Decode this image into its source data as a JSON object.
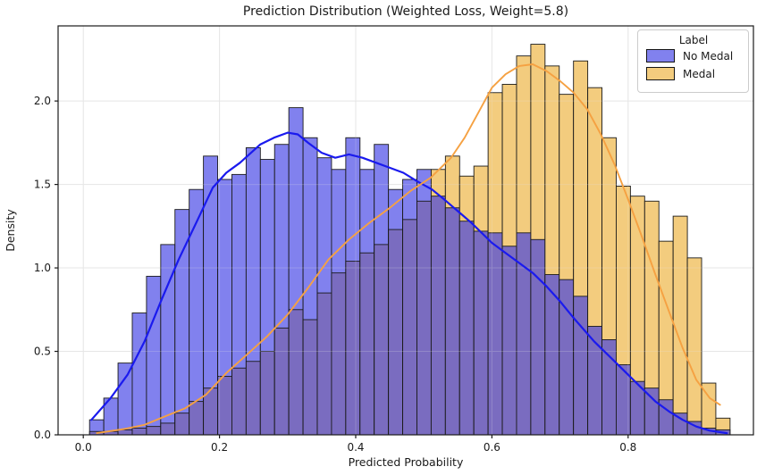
{
  "chart_data": {
    "type": "histogram+kde",
    "title": "Prediction Distribution (Weighted Loss, Weight=5.8)",
    "xlabel": "Predicted Probability",
    "ylabel": "Density",
    "xlim": [
      -0.037,
      0.984
    ],
    "ylim": [
      0,
      2.45
    ],
    "x_tick_values": [
      0.0,
      0.2,
      0.4,
      0.6,
      0.8
    ],
    "x_tick_labels": [
      "0.0",
      "0.2",
      "0.4",
      "0.6",
      "0.8"
    ],
    "y_tick_values": [
      0.0,
      0.5,
      1.0,
      1.5,
      2.0
    ],
    "y_tick_labels": [
      "0.0",
      "0.5",
      "1.0",
      "1.5",
      "2.0"
    ],
    "grid": true,
    "bin_start": 0.0092,
    "bin_width": 0.0209,
    "series": [
      {
        "name": "No Medal",
        "fill_color": "#8181ee",
        "line_color": "#1a1aee",
        "values": [
          0.09,
          0.22,
          0.43,
          0.73,
          0.95,
          1.14,
          1.35,
          1.47,
          1.67,
          1.53,
          1.56,
          1.72,
          1.65,
          1.74,
          1.96,
          1.78,
          1.66,
          1.59,
          1.78,
          1.59,
          1.74,
          1.47,
          1.53,
          1.59,
          1.43,
          1.36,
          1.28,
          1.22,
          1.21,
          1.13,
          1.21,
          1.17,
          0.96,
          0.93,
          0.83,
          0.65,
          0.57,
          0.42,
          0.32,
          0.28,
          0.21,
          0.13,
          0.08,
          0.04,
          0.03
        ],
        "kde": [
          [
            0.012,
            0.09
          ],
          [
            0.04,
            0.22
          ],
          [
            0.065,
            0.36
          ],
          [
            0.09,
            0.56
          ],
          [
            0.115,
            0.81
          ],
          [
            0.14,
            1.05
          ],
          [
            0.167,
            1.28
          ],
          [
            0.19,
            1.48
          ],
          [
            0.21,
            1.57
          ],
          [
            0.23,
            1.63
          ],
          [
            0.26,
            1.74
          ],
          [
            0.28,
            1.78
          ],
          [
            0.3,
            1.81
          ],
          [
            0.315,
            1.8
          ],
          [
            0.33,
            1.75
          ],
          [
            0.35,
            1.69
          ],
          [
            0.37,
            1.66
          ],
          [
            0.39,
            1.68
          ],
          [
            0.41,
            1.66
          ],
          [
            0.43,
            1.63
          ],
          [
            0.45,
            1.6
          ],
          [
            0.47,
            1.57
          ],
          [
            0.49,
            1.52
          ],
          [
            0.512,
            1.47
          ],
          [
            0.53,
            1.41
          ],
          [
            0.55,
            1.34
          ],
          [
            0.57,
            1.27
          ],
          [
            0.6,
            1.15
          ],
          [
            0.62,
            1.09
          ],
          [
            0.64,
            1.03
          ],
          [
            0.66,
            0.97
          ],
          [
            0.68,
            0.89
          ],
          [
            0.7,
            0.8
          ],
          [
            0.72,
            0.7
          ],
          [
            0.75,
            0.56
          ],
          [
            0.78,
            0.44
          ],
          [
            0.8,
            0.36
          ],
          [
            0.82,
            0.28
          ],
          [
            0.84,
            0.2
          ],
          [
            0.86,
            0.14
          ],
          [
            0.88,
            0.09
          ],
          [
            0.9,
            0.05
          ],
          [
            0.92,
            0.025
          ],
          [
            0.945,
            0.01
          ]
        ]
      },
      {
        "name": "Medal",
        "fill_color": "#f3cc7e",
        "line_color": "#f5a142",
        "values": [
          0.02,
          0.02,
          0.03,
          0.04,
          0.05,
          0.07,
          0.13,
          0.2,
          0.28,
          0.35,
          0.4,
          0.44,
          0.5,
          0.64,
          0.75,
          0.69,
          0.85,
          0.97,
          1.04,
          1.09,
          1.14,
          1.23,
          1.29,
          1.4,
          1.59,
          1.67,
          1.55,
          1.61,
          2.05,
          2.1,
          2.27,
          2.34,
          2.21,
          2.04,
          2.24,
          2.08,
          1.78,
          1.49,
          1.43,
          1.4,
          1.16,
          1.31,
          1.06,
          0.31,
          0.1
        ],
        "kde": [
          [
            0.02,
            0.01
          ],
          [
            0.06,
            0.035
          ],
          [
            0.09,
            0.06
          ],
          [
            0.12,
            0.11
          ],
          [
            0.15,
            0.16
          ],
          [
            0.18,
            0.24
          ],
          [
            0.21,
            0.37
          ],
          [
            0.24,
            0.48
          ],
          [
            0.27,
            0.59
          ],
          [
            0.3,
            0.72
          ],
          [
            0.33,
            0.88
          ],
          [
            0.36,
            1.05
          ],
          [
            0.39,
            1.17
          ],
          [
            0.42,
            1.27
          ],
          [
            0.45,
            1.36
          ],
          [
            0.48,
            1.46
          ],
          [
            0.51,
            1.54
          ],
          [
            0.54,
            1.66
          ],
          [
            0.56,
            1.78
          ],
          [
            0.58,
            1.93
          ],
          [
            0.6,
            2.08
          ],
          [
            0.62,
            2.16
          ],
          [
            0.64,
            2.21
          ],
          [
            0.66,
            2.22
          ],
          [
            0.68,
            2.18
          ],
          [
            0.7,
            2.12
          ],
          [
            0.72,
            2.05
          ],
          [
            0.74,
            1.95
          ],
          [
            0.76,
            1.8
          ],
          [
            0.78,
            1.62
          ],
          [
            0.8,
            1.41
          ],
          [
            0.82,
            1.19
          ],
          [
            0.84,
            0.96
          ],
          [
            0.86,
            0.74
          ],
          [
            0.88,
            0.52
          ],
          [
            0.9,
            0.33
          ],
          [
            0.92,
            0.22
          ],
          [
            0.935,
            0.18
          ]
        ]
      }
    ],
    "legend": {
      "title": "Label",
      "position": "upper right"
    },
    "colors": {
      "overlap_fill": "#7a6cc0",
      "bar_edge": "#1a1a1a",
      "grid": "#e6e6e6",
      "spine": "#1a1a1a",
      "text": "#1a1a1a"
    }
  }
}
